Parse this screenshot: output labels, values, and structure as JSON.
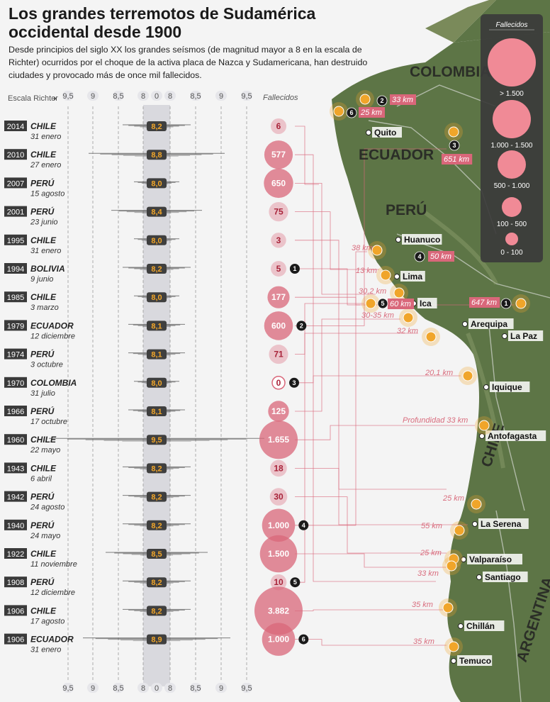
{
  "title": "Los grandes terremotos de Sudamérica occidental desde 1900",
  "subtitle": "Desde principios del siglo XX los grandes seísmos (de magnitud mayor a 8 en la escala de Richter) ocurridos por el choque de la activa placa de Nazca y Sudamericana, han destruido ciudades y provocado más de once mil fallecidos.",
  "axis_title": "Escala Richter",
  "fatalities_header": "Fallecidos",
  "colors": {
    "bubble": "#d9677a",
    "bar": "#555555",
    "accent": "#f0a52a",
    "legend_bg": "#3b3b3b",
    "map_land": "#5d7546",
    "map_ocean": "#f4f4f4"
  },
  "chart_data": {
    "type": "table",
    "x_ticks": [
      "9,5",
      "9",
      "8,5",
      "8",
      "0",
      "8",
      "8,5",
      "9",
      "9,5"
    ],
    "rows": [
      {
        "year": "2014",
        "country": "CHILE",
        "date": "31 enero",
        "magnitude": 8.2,
        "magnitude_label": "8,2",
        "fatalities": 6,
        "fatalities_label": "6",
        "marker": ""
      },
      {
        "year": "2010",
        "country": "CHILE",
        "date": "27 enero",
        "magnitude": 8.8,
        "magnitude_label": "8,8",
        "fatalities": 577,
        "fatalities_label": "577",
        "marker": ""
      },
      {
        "year": "2007",
        "country": "PERÚ",
        "date": "15 agosto",
        "magnitude": 8.0,
        "magnitude_label": "8,0",
        "fatalities": 650,
        "fatalities_label": "650",
        "marker": ""
      },
      {
        "year": "2001",
        "country": "PERÚ",
        "date": "23 junio",
        "magnitude": 8.4,
        "magnitude_label": "8,4",
        "fatalities": 75,
        "fatalities_label": "75",
        "marker": ""
      },
      {
        "year": "1995",
        "country": "CHILE",
        "date": "31 enero",
        "magnitude": 8.0,
        "magnitude_label": "8,0",
        "fatalities": 3,
        "fatalities_label": "3",
        "marker": ""
      },
      {
        "year": "1994",
        "country": "BOLIVIA",
        "date": "9 junio",
        "magnitude": 8.2,
        "magnitude_label": "8,2",
        "fatalities": 5,
        "fatalities_label": "5",
        "marker": "1"
      },
      {
        "year": "1985",
        "country": "CHILE",
        "date": "3 marzo",
        "magnitude": 8.0,
        "magnitude_label": "8,0",
        "fatalities": 177,
        "fatalities_label": "177",
        "marker": ""
      },
      {
        "year": "1979",
        "country": "ECUADOR",
        "date": "12 diciembre",
        "magnitude": 8.1,
        "magnitude_label": "8,1",
        "fatalities": 600,
        "fatalities_label": "600",
        "marker": "2"
      },
      {
        "year": "1974",
        "country": "PERÚ",
        "date": "3 octubre",
        "magnitude": 8.1,
        "magnitude_label": "8,1",
        "fatalities": 71,
        "fatalities_label": "71",
        "marker": ""
      },
      {
        "year": "1970",
        "country": "COLOMBIA",
        "date": "31 julio",
        "magnitude": 8.0,
        "magnitude_label": "8,0",
        "fatalities": 0,
        "fatalities_label": "0",
        "marker": "3"
      },
      {
        "year": "1966",
        "country": "PERÚ",
        "date": "17 octubre",
        "magnitude": 8.1,
        "magnitude_label": "8,1",
        "fatalities": 125,
        "fatalities_label": "125",
        "marker": ""
      },
      {
        "year": "1960",
        "country": "CHILE",
        "date": "22 mayo",
        "magnitude": 9.5,
        "magnitude_label": "9,5",
        "fatalities": 1655,
        "fatalities_label": "1.655",
        "marker": ""
      },
      {
        "year": "1943",
        "country": "CHILE",
        "date": "6 abril",
        "magnitude": 8.2,
        "magnitude_label": "8,2",
        "fatalities": 18,
        "fatalities_label": "18",
        "marker": ""
      },
      {
        "year": "1942",
        "country": "PERÚ",
        "date": "24 agosto",
        "magnitude": 8.2,
        "magnitude_label": "8,2",
        "fatalities": 30,
        "fatalities_label": "30",
        "marker": ""
      },
      {
        "year": "1940",
        "country": "PERÚ",
        "date": "24 mayo",
        "magnitude": 8.2,
        "magnitude_label": "8,2",
        "fatalities": 1000,
        "fatalities_label": "1.000",
        "marker": "4"
      },
      {
        "year": "1922",
        "country": "CHILE",
        "date": "11 noviembre",
        "magnitude": 8.5,
        "magnitude_label": "8,5",
        "fatalities": 1500,
        "fatalities_label": "1.500",
        "marker": ""
      },
      {
        "year": "1908",
        "country": "PERÚ",
        "date": "12 diciembre",
        "magnitude": 8.2,
        "magnitude_label": "8,2",
        "fatalities": 10,
        "fatalities_label": "10",
        "marker": "5"
      },
      {
        "year": "1906",
        "country": "CHILE",
        "date": "17 agosto",
        "magnitude": 8.2,
        "magnitude_label": "8,2",
        "fatalities": 3882,
        "fatalities_label": "3.882",
        "marker": ""
      },
      {
        "year": "1906",
        "country": "ECUADOR",
        "date": "31 enero",
        "magnitude": 8.9,
        "magnitude_label": "8,9",
        "fatalities": 1000,
        "fatalities_label": "1.000",
        "marker": "6"
      }
    ],
    "legend": {
      "title": "Fallecidos",
      "classes": [
        "> 1.500",
        "1.000 - 1.500",
        "500 - 1.000",
        "100 - 500",
        "0 - 100"
      ]
    }
  },
  "map": {
    "countries": [
      "COLOMBIA",
      "ECUADOR",
      "PERÚ",
      "CHILE",
      "ARGENTINA"
    ],
    "cities": [
      "Quito",
      "Huanuco",
      "Lima",
      "Ica",
      "Arequipa",
      "La Paz",
      "Iquique",
      "Antofagasta",
      "La Serena",
      "Valparaíso",
      "Santiago",
      "Chillán",
      "Temuco"
    ],
    "depth_labels": [
      "33 km",
      "25 km",
      "651 km",
      "38 km",
      "50 km",
      "13 km",
      "30,2 km",
      "60 km",
      "30-35 km",
      "647 km",
      "32 km",
      "20,1 km",
      "Profundidad   33 km",
      "25 km",
      "55 km",
      "25 km",
      "33 km",
      "35 km",
      "35 km"
    ],
    "markers": [
      "1",
      "2",
      "3",
      "4",
      "5",
      "6"
    ]
  }
}
